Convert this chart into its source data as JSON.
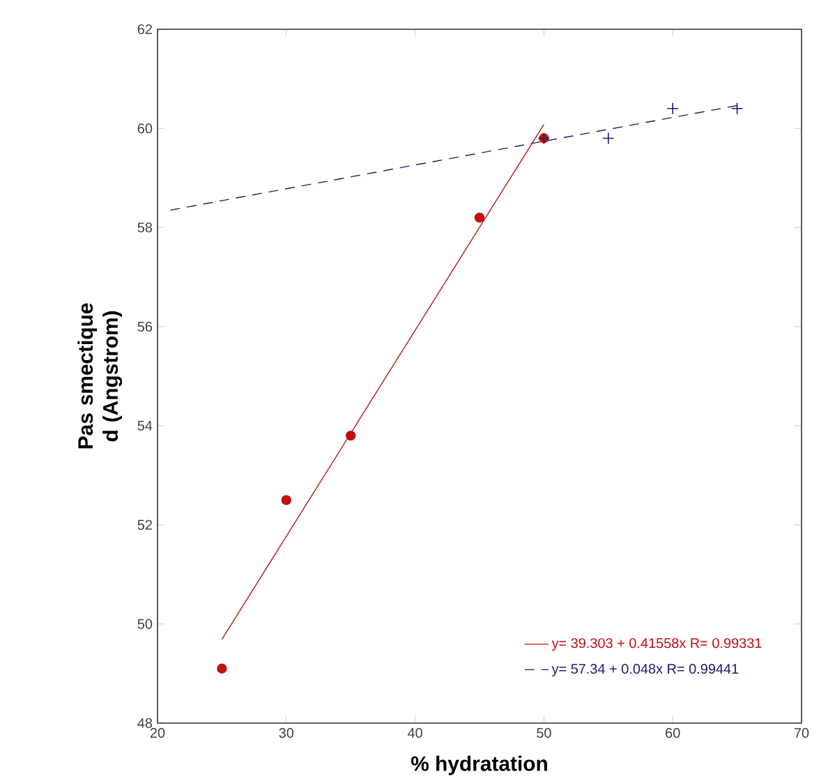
{
  "chart_data": {
    "type": "scatter",
    "xlabel": "% hydratation",
    "ylabel": "Pas smectique d (Angstrom)",
    "xlim": [
      20,
      70
    ],
    "xticks": [
      20,
      30,
      40,
      50,
      60,
      70
    ],
    "ylim": [
      48,
      62
    ],
    "yticks": [
      48,
      50,
      52,
      54,
      56,
      58,
      60,
      62
    ],
    "grid": false,
    "legend": "bottom right",
    "series": [
      {
        "marker": "circle",
        "color": "#c01010",
        "x": [
          25,
          30,
          35,
          45,
          50
        ],
        "values": [
          49.1,
          52.5,
          53.8,
          58.2,
          59.8
        ]
      },
      {
        "marker": "cross",
        "color": "#1c1c70",
        "x": [
          50,
          55,
          60,
          65
        ],
        "values": [
          59.8,
          59.8,
          60.4,
          60.4
        ]
      },
      {
        "type": "line",
        "name": "y= 39.303 + 0.41558x   R= 0.99331",
        "color": "#c01010",
        "line_style": "solid",
        "marker": "none",
        "x": [
          25,
          50
        ],
        "values": [
          49.69,
          60.08
        ]
      },
      {
        "type": "line",
        "name": "y= 57.34 + 0.048x   R= 0.99441",
        "color": "#1c1c70",
        "line_style": "dashed",
        "marker": "none",
        "x": [
          21,
          65
        ],
        "values": [
          58.35,
          60.46
        ]
      }
    ]
  }
}
